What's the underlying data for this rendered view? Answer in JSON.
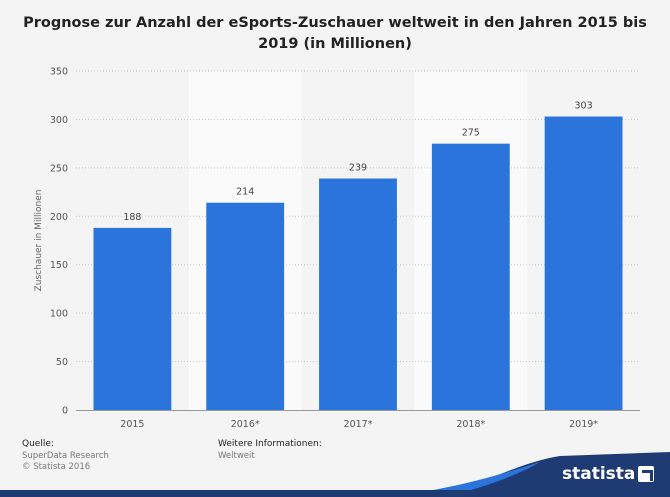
{
  "chart_data": {
    "type": "bar",
    "title": "Prognose zur Anzahl der eSports-Zuschauer weltweit in den Jahren 2015 bis 2019 (in Millionen)",
    "xlabel": "",
    "ylabel": "Zuschauer in Millionen",
    "categories": [
      "2015",
      "2016*",
      "2017*",
      "2018*",
      "2019*"
    ],
    "values": [
      188,
      214,
      239,
      275,
      303
    ],
    "ylim": [
      0,
      350
    ],
    "yticks": [
      0,
      50,
      100,
      150,
      200,
      250,
      300,
      350
    ],
    "bar_color": "#2a74dc",
    "grid": true,
    "data_labels": true
  },
  "footer": {
    "source_heading": "Quelle:",
    "source_name": "SuperData Research",
    "copyright": "© Statista 2016",
    "info_heading": "Weitere Informationen:",
    "info_value": "Weltweit"
  },
  "brand": {
    "name": "statista"
  },
  "colors": {
    "background": "#f4f4f4",
    "band": "#fafafa",
    "brand_dark": "#1f3b73",
    "brand_blue": "#2a74dc"
  }
}
